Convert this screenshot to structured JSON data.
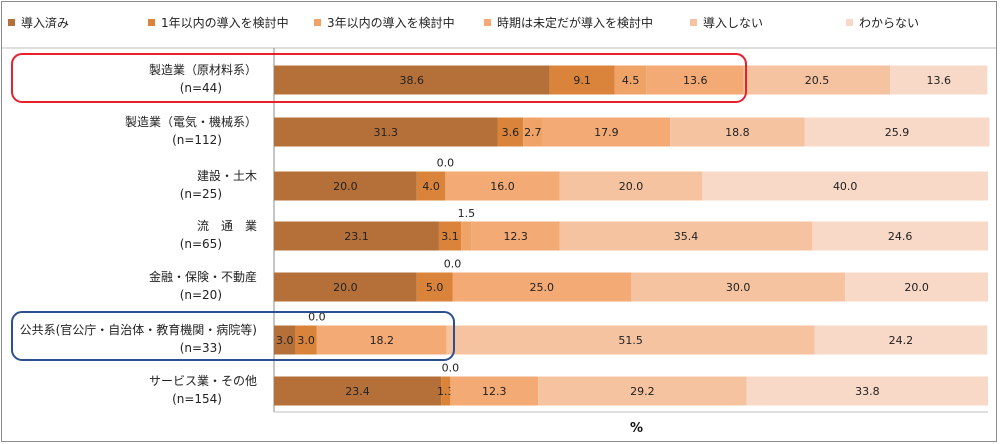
{
  "chart_data": {
    "type": "bar",
    "orientation": "horizontal",
    "stacked": true,
    "xlabel": "%",
    "xlim": [
      0,
      100
    ],
    "grid": false,
    "legend_position": "top",
    "series": [
      {
        "name": "導入済み",
        "color": "#b5703a"
      },
      {
        "name": "1年以内の導入を検討中",
        "color": "#d9843a"
      },
      {
        "name": "3年以内の導入を検討中",
        "color": "#efa366"
      },
      {
        "name": "時期は未定だが導入を検討中",
        "color": "#f4aa74"
      },
      {
        "name": "導入しない",
        "color": "#f6c3a1"
      },
      {
        "name": "わからない",
        "color": "#f8d8c6"
      }
    ],
    "categories": [
      {
        "label": [
          "製造業（原材料系）",
          "(n=44)"
        ],
        "values": [
          38.6,
          9.1,
          4.5,
          13.6,
          20.5,
          13.6
        ]
      },
      {
        "label": [
          "製造業（電気・機械系）",
          "(n=112)"
        ],
        "values": [
          31.3,
          3.6,
          2.7,
          17.9,
          18.8,
          25.9
        ]
      },
      {
        "label": [
          "建設・土木",
          "(n=25)"
        ],
        "values": [
          20.0,
          4.0,
          0.0,
          16.0,
          20.0,
          40.0
        ]
      },
      {
        "label": [
          "流　通　業",
          "(n=65)"
        ],
        "values": [
          23.1,
          3.1,
          1.5,
          12.3,
          35.4,
          24.6
        ]
      },
      {
        "label": [
          "金融・保険・不動産",
          "(n=20)"
        ],
        "values": [
          20.0,
          5.0,
          0.0,
          25.0,
          30.0,
          20.0
        ]
      },
      {
        "label": [
          "公共系(官公庁・自治体・教育機関・病院等)",
          "(n=33)"
        ],
        "values": [
          3.0,
          3.0,
          0.0,
          18.2,
          51.5,
          24.2
        ]
      },
      {
        "label": [
          "サービス業・その他",
          "(n=154)"
        ],
        "values": [
          23.4,
          1.3,
          0.0,
          12.3,
          29.2,
          33.8
        ]
      }
    ],
    "highlights": [
      {
        "category_index": 0,
        "color": "#e8202a"
      },
      {
        "category_index": 5,
        "color": "#2d4f8e"
      }
    ]
  }
}
